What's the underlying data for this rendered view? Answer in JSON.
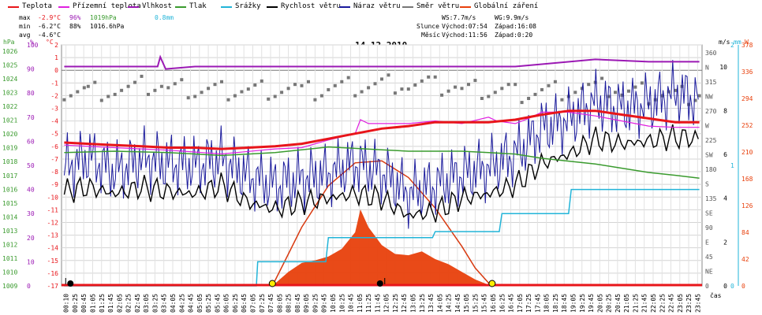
{
  "title": "14.12.2010",
  "legend": [
    {
      "label": "Teplota",
      "color": "#e8151a"
    },
    {
      "label": "Přízemní teplota",
      "color": "#e020e0"
    },
    {
      "label": "Vlhkost",
      "color": "#9b19b4"
    },
    {
      "label": "Tlak",
      "color": "#3a9b2e"
    },
    {
      "label": "Srážky",
      "color": "#22b4d8"
    },
    {
      "label": "Rychlost větru",
      "color": "#000000"
    },
    {
      "label": "Náraz větru",
      "color": "#1a1a9c"
    },
    {
      "label": "Směr větru",
      "color": "#777777"
    },
    {
      "label": "Globální záření",
      "color": "#e8400c"
    }
  ],
  "stats": {
    "max": {
      "label": "max",
      "temp": "-2.9°C",
      "hum": "96%",
      "press": "1019hPa",
      "rain": "0.8mm"
    },
    "min": {
      "label": "min",
      "temp": "-6.2°C",
      "hum": "88%",
      "press": "1016.6hPa"
    },
    "avg": {
      "label": "avg",
      "temp": "-4.6°C"
    },
    "ws": "WS:7.7m/s",
    "wg": "WG:9.9m/s",
    "sun": {
      "label": "Slunce",
      "rise": "Východ:07:54",
      "set": "Západ:16:08"
    },
    "moon": {
      "label": "Měsíc",
      "rise": "Východ:11:56",
      "set": "Západ:0:20"
    }
  },
  "axes": {
    "hpa": {
      "unit": "hPa",
      "ticks": [
        "1026",
        "1025",
        "1024",
        "1023",
        "1022",
        "1021",
        "1020",
        "1019",
        "1018",
        "1017",
        "1016",
        "1015",
        "1014",
        "1013",
        "1012",
        "1011",
        "1010",
        "1009"
      ]
    },
    "percent": {
      "unit": "%",
      "ticks": [
        "100",
        "90",
        "80",
        "70",
        "60",
        "50",
        "40",
        "30",
        "20",
        "10",
        "0"
      ]
    },
    "celsius": {
      "unit": "°C",
      "ticks": [
        "2",
        "1",
        "0",
        "-1",
        "-2",
        "-3",
        "-4",
        "-5",
        "-6",
        "-7",
        "-8",
        "-9",
        "-10",
        "-11",
        "-12",
        "-13",
        "-14",
        "-15",
        "-16",
        "-17"
      ]
    },
    "direction": {
      "ticks": [
        "360",
        "N",
        "315",
        "NW",
        "270",
        "W",
        "225",
        "SW",
        "180",
        "S",
        "135",
        "SE",
        "90",
        "E",
        "45",
        "NE",
        "0"
      ]
    },
    "wind": {
      "unit": "m/s",
      "ticks": [
        "10",
        "8",
        "6",
        "4",
        "2",
        "0"
      ]
    },
    "rain": {
      "unit": "mm",
      "ticks": [
        "2",
        "1",
        "0"
      ]
    },
    "radiation": {
      "unit": "W",
      "ticks": [
        "378",
        "336",
        "294",
        "252",
        "210",
        "168",
        "126",
        "84",
        "42",
        "0"
      ]
    },
    "time_label": "čas",
    "time_ticks": [
      "00:10",
      "00:25",
      "00:45",
      "01:05",
      "01:25",
      "01:45",
      "02:05",
      "02:25",
      "02:45",
      "03:05",
      "03:25",
      "03:45",
      "04:05",
      "04:25",
      "04:45",
      "05:05",
      "05:25",
      "05:45",
      "06:05",
      "06:25",
      "06:45",
      "07:05",
      "07:25",
      "07:45",
      "08:05",
      "08:25",
      "08:45",
      "09:05",
      "09:25",
      "09:45",
      "10:05",
      "10:25",
      "10:45",
      "11:05",
      "11:25",
      "11:45",
      "12:05",
      "12:25",
      "12:45",
      "13:05",
      "13:25",
      "13:45",
      "14:05",
      "14:25",
      "14:45",
      "15:05",
      "15:25",
      "15:45",
      "16:05",
      "16:25",
      "16:45",
      "17:05",
      "17:25",
      "17:45",
      "18:05",
      "18:25",
      "18:45",
      "19:05",
      "19:25",
      "19:45",
      "20:05",
      "20:25",
      "20:45",
      "21:05",
      "21:25",
      "21:45",
      "22:05",
      "22:25",
      "22:45",
      "23:05",
      "23:25",
      "23:45"
    ]
  },
  "chart_data": {
    "type": "line",
    "title": "14.12.2010",
    "x_unit": "hours",
    "series": [
      {
        "name": "Teplota",
        "axis": "°C",
        "color": "#e8151a",
        "x": [
          0.1,
          1,
          2,
          3,
          4,
          5,
          6,
          7,
          8,
          9,
          10,
          11,
          12,
          13,
          14,
          15,
          16,
          17,
          18,
          19,
          20,
          21,
          22,
          23,
          23.9
        ],
        "y": [
          -5.7,
          -5.8,
          -5.9,
          -6.0,
          -6.1,
          -6.1,
          -6.2,
          -6.1,
          -6.0,
          -5.8,
          -5.4,
          -5.0,
          -4.6,
          -4.4,
          -4.1,
          -4.1,
          -4.1,
          -3.9,
          -3.5,
          -3.2,
          -3.2,
          -3.5,
          -3.8,
          -4.1,
          -4.1
        ]
      },
      {
        "name": "Přízemní teplota",
        "axis": "°C",
        "color": "#e020e0",
        "x": [
          0.1,
          2,
          4,
          6,
          7,
          8,
          9,
          10,
          11,
          11.2,
          11.5,
          12,
          13,
          14,
          15,
          16,
          16.3,
          17,
          17.5,
          18,
          19,
          20,
          21,
          22,
          23,
          23.9
        ],
        "y": [
          -5.9,
          -6.1,
          -6.3,
          -6.6,
          -6.4,
          -6.2,
          -6.1,
          -5.5,
          -5.0,
          -3.9,
          -4.2,
          -4.2,
          -4.2,
          -4.0,
          -4.2,
          -3.7,
          -4.0,
          -4.2,
          -3.8,
          -3.3,
          -3.3,
          -3.6,
          -4.0,
          -4.4,
          -4.5,
          -4.5
        ]
      },
      {
        "name": "Vlhkost",
        "axis": "%",
        "color": "#9b19b4",
        "x": [
          0.1,
          3.6,
          3.7,
          3.9,
          5,
          8,
          12,
          15,
          16,
          17,
          18,
          20,
          22,
          23.9
        ],
        "y": [
          91,
          91,
          95,
          90,
          91,
          91,
          91,
          91,
          91,
          91,
          92,
          94,
          93,
          93
        ]
      },
      {
        "name": "Tlak",
        "axis": "hPa",
        "color": "#3a9b2e",
        "x": [
          0.1,
          2,
          4,
          6,
          7,
          8,
          9,
          10,
          11,
          12,
          13,
          14,
          15,
          16,
          17,
          18,
          19,
          20,
          21,
          22,
          23,
          23.9
        ],
        "y": [
          1018.4,
          1018.5,
          1018.4,
          1018.2,
          1018.3,
          1018.4,
          1018.6,
          1018.8,
          1018.7,
          1018.6,
          1018.5,
          1018.5,
          1018.5,
          1018.4,
          1018.3,
          1018.0,
          1017.8,
          1017.6,
          1017.3,
          1017.0,
          1016.8,
          1016.6
        ]
      },
      {
        "name": "Srážky",
        "axis": "mm",
        "color": "#22b4d8",
        "x": [
          0.1,
          7.3,
          7.35,
          9.9,
          10.0,
          13.9,
          14.0,
          16.4,
          16.5,
          19.0,
          19.1,
          23.9
        ],
        "y": [
          0,
          0,
          0.2,
          0.2,
          0.4,
          0.4,
          0.45,
          0.45,
          0.6,
          0.6,
          0.8,
          0.8
        ]
      },
      {
        "name": "Rychlost větru",
        "axis": "m/s",
        "color": "#000000",
        "x": [
          0.1,
          1,
          2,
          3,
          4,
          5,
          6,
          7,
          8,
          9,
          10,
          11,
          12,
          13,
          14,
          15,
          16,
          17,
          18,
          19,
          20,
          21,
          22,
          23,
          23.9
        ],
        "y": [
          4.3,
          4.5,
          4.2,
          4.5,
          4.3,
          4.2,
          4.6,
          3.8,
          3.5,
          3.8,
          4.0,
          4.2,
          4.0,
          3.2,
          3.4,
          4.0,
          4.2,
          4.6,
          5.6,
          6.0,
          6.7,
          6.5,
          6.6,
          6.8,
          6.7
        ]
      },
      {
        "name": "Náraz větru",
        "axis": "m/s",
        "color": "#1a1a9c",
        "x": [
          0.1,
          1,
          2,
          3,
          4,
          5,
          6,
          7,
          8,
          9,
          10,
          11,
          12,
          13,
          14,
          15,
          16,
          17,
          18,
          19,
          20,
          21,
          22,
          23,
          23.9
        ],
        "y": [
          5.4,
          5.9,
          5.2,
          5.8,
          5.6,
          5.5,
          5.8,
          5.0,
          4.6,
          4.9,
          5.1,
          5.6,
          5.2,
          4.2,
          4.6,
          5.1,
          5.4,
          6.0,
          7.2,
          7.6,
          8.4,
          8.1,
          8.3,
          8.8,
          8.5
        ]
      },
      {
        "name": "Směr větru",
        "axis": "°",
        "color": "#777777",
        "x": [
          0.1,
          1,
          2,
          3,
          4,
          5,
          6,
          7,
          8,
          9,
          10,
          11,
          12,
          13,
          14,
          15,
          16,
          17,
          18,
          19,
          20,
          21,
          22,
          23,
          23.9
        ],
        "y": [
          293,
          292,
          292,
          298,
          293,
          292,
          293,
          294,
          295,
          290,
          296,
          299,
          303,
          300,
          297,
          292,
          292,
          289,
          293,
          295,
          295,
          288,
          287,
          286,
          290
        ]
      },
      {
        "name": "Globální záření",
        "axis": "W",
        "color": "#e8400c",
        "x": [
          0.1,
          7.9,
          8.5,
          9,
          9.5,
          10,
          10.5,
          11,
          11.2,
          11.5,
          12,
          12.5,
          13,
          13.5,
          14,
          14.5,
          15,
          15.5,
          16.1,
          23.9
        ],
        "y": [
          0,
          0,
          22,
          36,
          40,
          46,
          58,
          84,
          120,
          92,
          64,
          50,
          48,
          54,
          42,
          34,
          22,
          10,
          0,
          0
        ]
      },
      {
        "name": "Teoretické záření",
        "axis": "W",
        "color": "#d83a10",
        "x": [
          7.9,
          8.5,
          9,
          10,
          11,
          12,
          13,
          14,
          15,
          15.5,
          16.1
        ],
        "y": [
          0,
          50,
          92,
          157,
          193,
          196,
          170,
          122,
          62,
          28,
          0
        ]
      }
    ],
    "markers": {
      "sunrise": "07:54",
      "sunset": "16:08",
      "moonrise": "11:56",
      "moonset": "00:20"
    },
    "ylim_celsius": [
      -17,
      2
    ],
    "ylim_percent": [
      0,
      100
    ],
    "ylim_hpa": [
      1009,
      1026
    ],
    "ylim_wind": [
      0,
      11
    ],
    "ylim_radiation": [
      0,
      378
    ],
    "ylim_rain": [
      0,
      2
    ],
    "ylim_direction": [
      0,
      360
    ],
    "grid": true
  }
}
